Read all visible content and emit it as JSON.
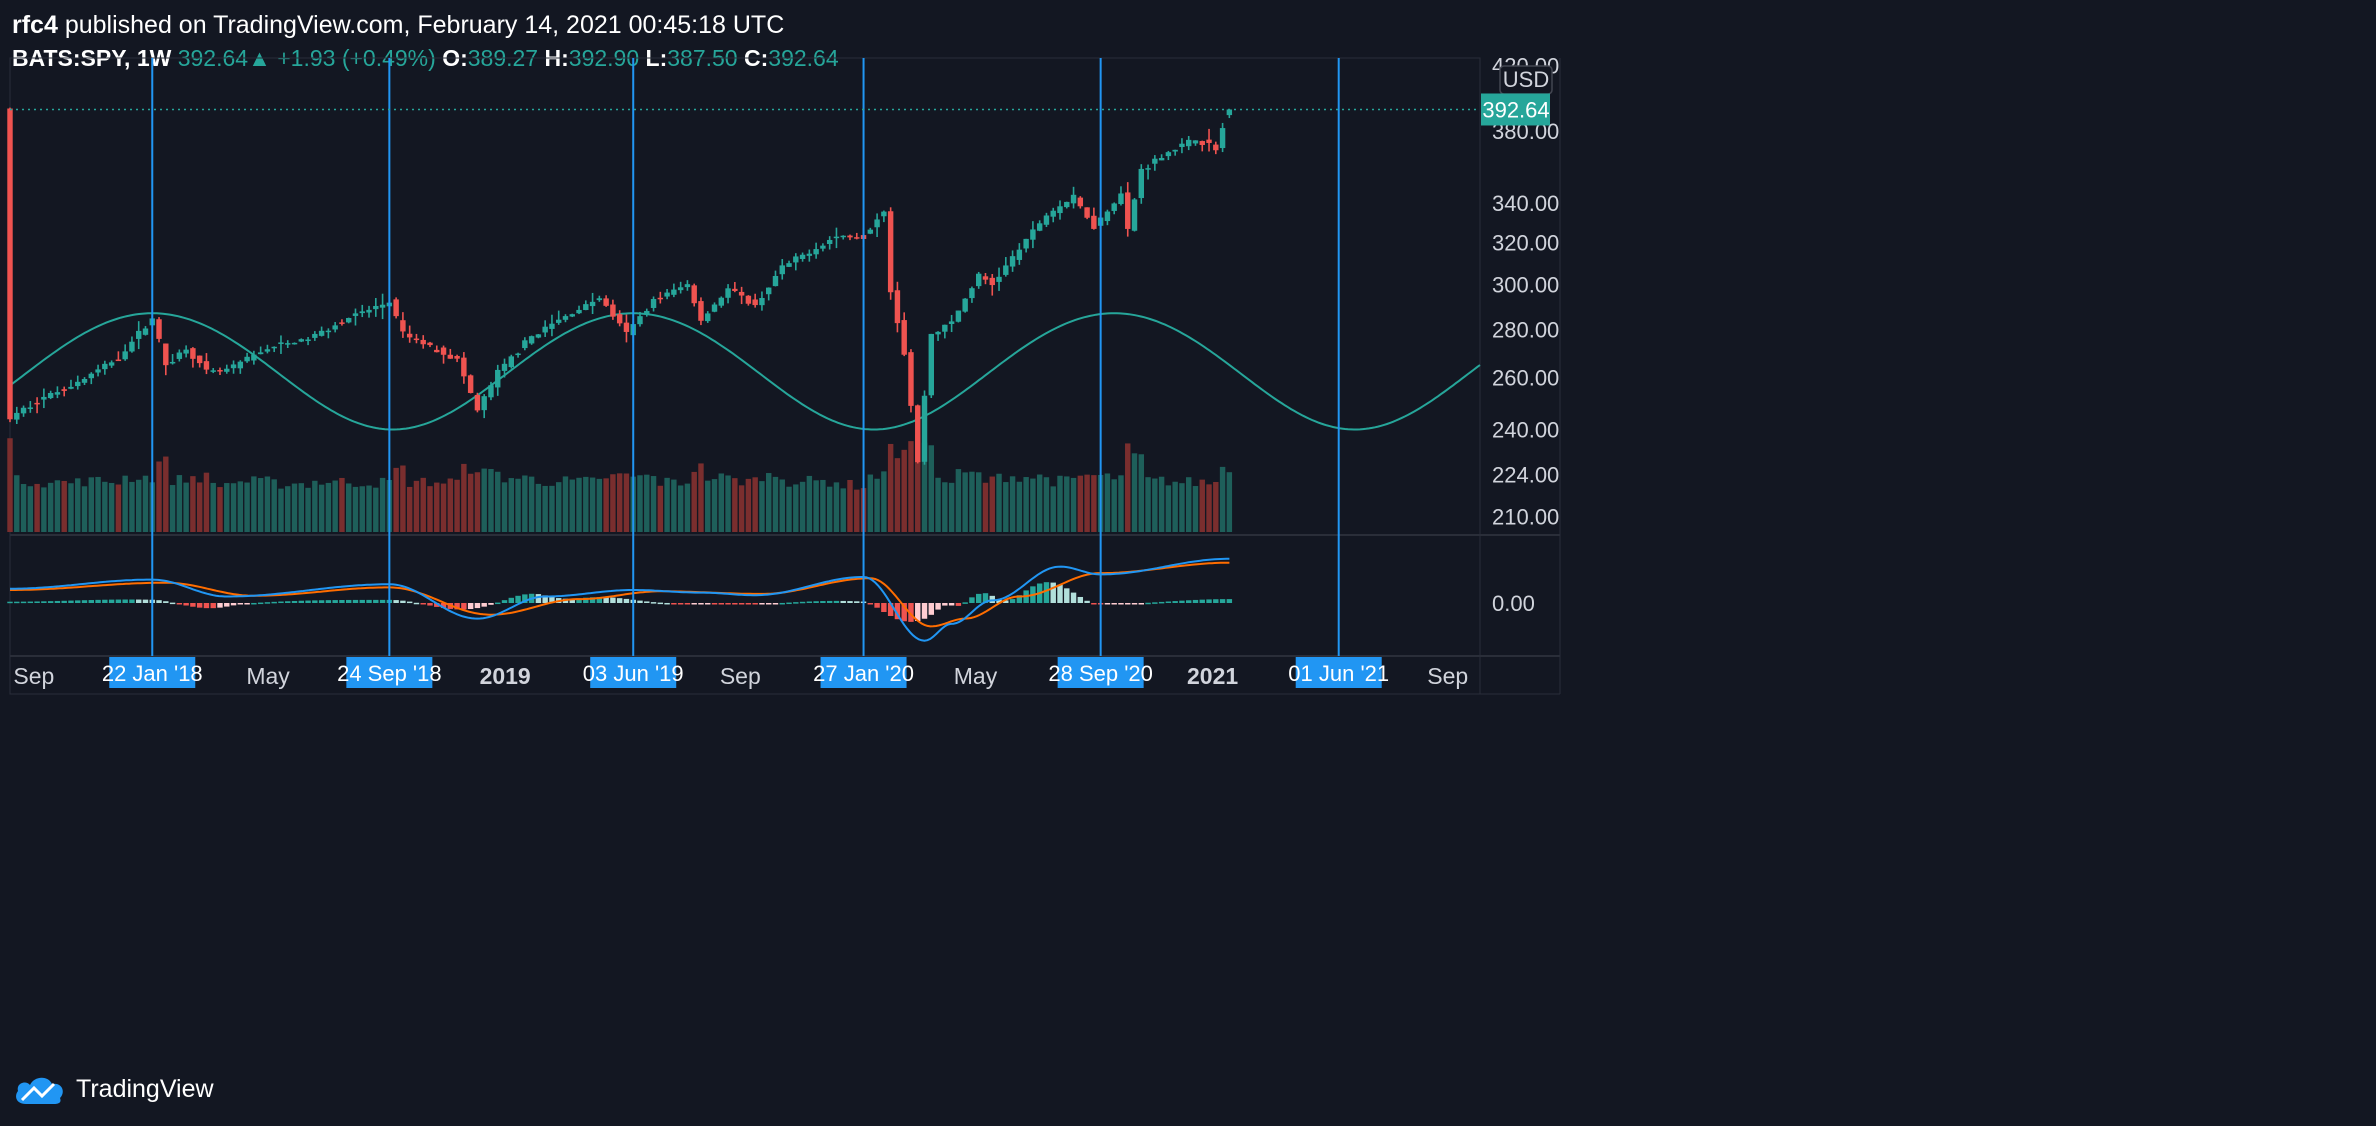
{
  "header": {
    "author": "rfc4",
    "published_text": "published on TradingView.com, February 14, 2021 00:45:18 UTC",
    "symbol": "BATS:SPY, 1W",
    "last": "392.64",
    "change": "+1.93 (+0.49%)",
    "o_label": "O:",
    "o": "389.27",
    "h_label": "H:",
    "h": "392.90",
    "l_label": "L:",
    "l": "387.50",
    "c_label": "C:",
    "c": "392.64"
  },
  "brand": "TradingView",
  "currency": "USD",
  "colors": {
    "background": "#131722",
    "up": "#26a69a",
    "down": "#ef5350",
    "vol_up": "#1e5f5a",
    "vol_down": "#7a2e2e",
    "marker": "#2196f3",
    "sine": "#26a69a",
    "macd": "#2196f3",
    "signal": "#ff6d00"
  },
  "chart_data": {
    "type": "candlestick",
    "symbol": "BATS:SPY",
    "interval": "1W",
    "price_scale": "log",
    "ylim": [
      205,
      425
    ],
    "y_ticks": [
      420,
      380,
      340,
      320,
      300,
      280,
      260,
      240,
      224,
      210
    ],
    "current_price_label": "392.64",
    "x_range": [
      "2017-08-28",
      "2021-10-25"
    ],
    "x_tick_labels": [
      {
        "date": "2017-09-01",
        "label": "Sep",
        "bold": false
      },
      {
        "date": "2018-05-01",
        "label": "May",
        "bold": false
      },
      {
        "date": "2019-01-01",
        "label": "2019",
        "bold": true
      },
      {
        "date": "2019-09-01",
        "label": "Sep",
        "bold": false
      },
      {
        "date": "2020-05-01",
        "label": "May",
        "bold": false
      },
      {
        "date": "2021-01-01",
        "label": "2021",
        "bold": true
      },
      {
        "date": "2021-09-01",
        "label": "Sep",
        "bold": false
      }
    ],
    "vertical_markers": [
      {
        "date": "2018-01-22",
        "label": "22 Jan '18"
      },
      {
        "date": "2018-09-24",
        "label": "24 Sep '18"
      },
      {
        "date": "2019-06-03",
        "label": "03 Jun '19"
      },
      {
        "date": "2020-01-27",
        "label": "27 Jan '20"
      },
      {
        "date": "2020-09-28",
        "label": "28 Sep '20"
      },
      {
        "date": "2021-06-01",
        "label": "01 Jun '21"
      }
    ],
    "sine_wave": {
      "peaks": [
        "2018-01-22",
        "2019-06-03",
        "2020-09-28"
      ],
      "high": 287,
      "low": 240
    },
    "macd_zero_label": "0.00",
    "price_anchors": [
      [
        "2017-08-28",
        244
      ],
      [
        "2017-09-25",
        251
      ],
      [
        "2017-11-06",
        258
      ],
      [
        "2017-12-18",
        268
      ],
      [
        "2018-01-22",
        285
      ],
      [
        "2018-02-05",
        265
      ],
      [
        "2018-02-26",
        272
      ],
      [
        "2018-03-19",
        262
      ],
      [
        "2018-04-09",
        263
      ],
      [
        "2018-05-21",
        272
      ],
      [
        "2018-07-02",
        276
      ],
      [
        "2018-08-13",
        285
      ],
      [
        "2018-09-24",
        292
      ],
      [
        "2018-10-08",
        278
      ],
      [
        "2018-10-29",
        274
      ],
      [
        "2018-11-19",
        270
      ],
      [
        "2018-12-03",
        267
      ],
      [
        "2018-12-24",
        247
      ],
      [
        "2019-01-14",
        262
      ],
      [
        "2019-02-18",
        277
      ],
      [
        "2019-04-08",
        289
      ],
      [
        "2019-04-29",
        294
      ],
      [
        "2019-05-27",
        278
      ],
      [
        "2019-06-24",
        293
      ],
      [
        "2019-07-29",
        300
      ],
      [
        "2019-08-12",
        284
      ],
      [
        "2019-09-09",
        298
      ],
      [
        "2019-10-07",
        290
      ],
      [
        "2019-11-04",
        308
      ],
      [
        "2019-12-30",
        323
      ],
      [
        "2020-01-27",
        323
      ],
      [
        "2020-02-17",
        337
      ],
      [
        "2020-02-24",
        297
      ],
      [
        "2020-03-09",
        270
      ],
      [
        "2020-03-23",
        228
      ],
      [
        "2020-04-06",
        278
      ],
      [
        "2020-04-27",
        283
      ],
      [
        "2020-05-25",
        304
      ],
      [
        "2020-06-08",
        300
      ],
      [
        "2020-07-06",
        317
      ],
      [
        "2020-08-03",
        334
      ],
      [
        "2020-08-31",
        343
      ],
      [
        "2020-09-21",
        328
      ],
      [
        "2020-10-19",
        345
      ],
      [
        "2020-10-26",
        326
      ],
      [
        "2020-11-09",
        358
      ],
      [
        "2020-12-07",
        368
      ],
      [
        "2021-01-04",
        375
      ],
      [
        "2021-01-25",
        370
      ],
      [
        "2021-02-08",
        392.64
      ]
    ],
    "macd": {
      "macd_anchors": [
        [
          "2017-08-28",
          0.55
        ],
        [
          "2018-01-22",
          0.9
        ],
        [
          "2018-04-09",
          0.25
        ],
        [
          "2018-09-24",
          0.72
        ],
        [
          "2018-12-24",
          -0.6
        ],
        [
          "2019-03-04",
          0.25
        ],
        [
          "2019-06-03",
          0.5
        ],
        [
          "2019-08-12",
          0.4
        ],
        [
          "2019-10-07",
          0.3
        ],
        [
          "2020-01-27",
          1.0
        ],
        [
          "2020-03-30",
          -1.45
        ],
        [
          "2020-04-27",
          -0.8
        ],
        [
          "2020-06-08",
          0.1
        ],
        [
          "2020-08-17",
          1.4
        ],
        [
          "2020-09-28",
          1.1
        ],
        [
          "2021-02-08",
          1.7
        ]
      ],
      "signal_anchors": [
        [
          "2017-08-28",
          0.5
        ],
        [
          "2018-02-05",
          0.78
        ],
        [
          "2018-05-07",
          0.28
        ],
        [
          "2018-09-24",
          0.6
        ],
        [
          "2019-01-07",
          -0.45
        ],
        [
          "2019-04-08",
          0.15
        ],
        [
          "2019-07-01",
          0.45
        ],
        [
          "2019-10-14",
          0.35
        ],
        [
          "2020-02-03",
          0.95
        ],
        [
          "2020-04-06",
          -0.9
        ],
        [
          "2020-05-11",
          -0.6
        ],
        [
          "2020-07-06",
          0.25
        ],
        [
          "2020-09-28",
          1.15
        ],
        [
          "2021-02-08",
          1.55
        ]
      ]
    }
  }
}
